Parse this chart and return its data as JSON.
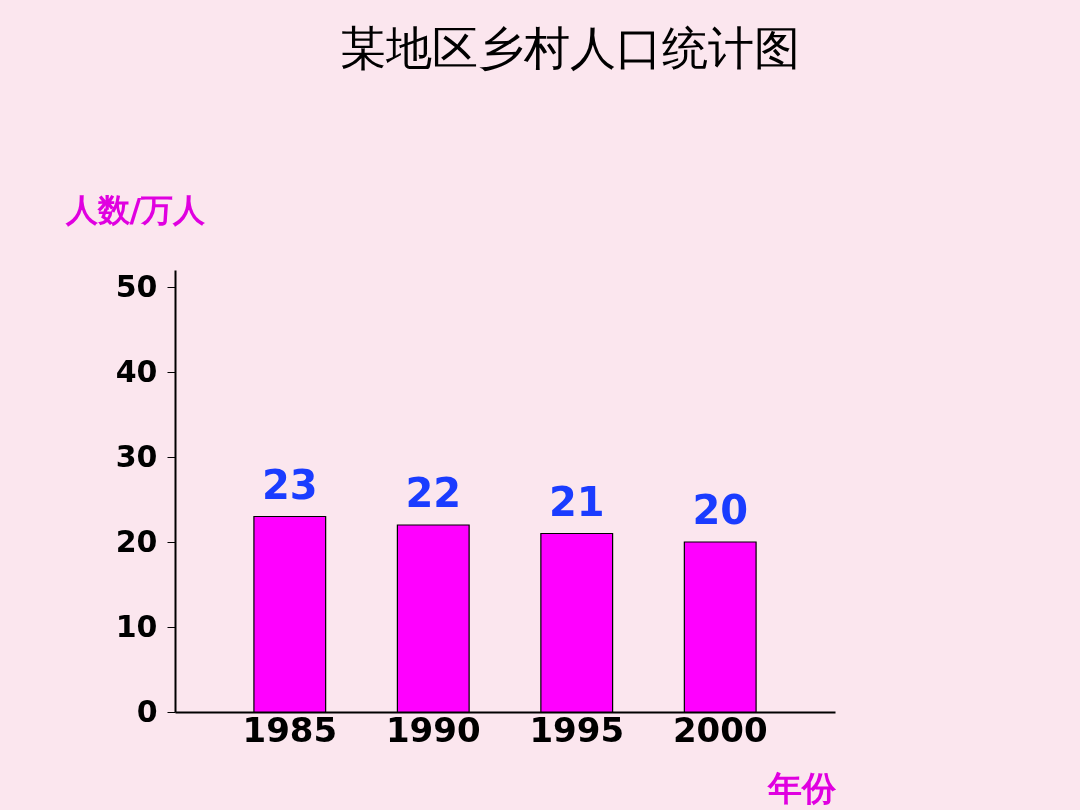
{
  "chart_data": {
    "type": "bar",
    "title": "某地区乡村人口统计图",
    "xlabel": "年份",
    "ylabel": "人数/万人",
    "categories": [
      "1985",
      "1990",
      "1995",
      "2000"
    ],
    "values": [
      23,
      22,
      21,
      20
    ],
    "color": "#ff00ff",
    "ylim": [
      0,
      52
    ],
    "yticks": [
      0,
      10,
      20,
      30,
      40,
      50
    ],
    "grid": false,
    "data_labels": true
  }
}
